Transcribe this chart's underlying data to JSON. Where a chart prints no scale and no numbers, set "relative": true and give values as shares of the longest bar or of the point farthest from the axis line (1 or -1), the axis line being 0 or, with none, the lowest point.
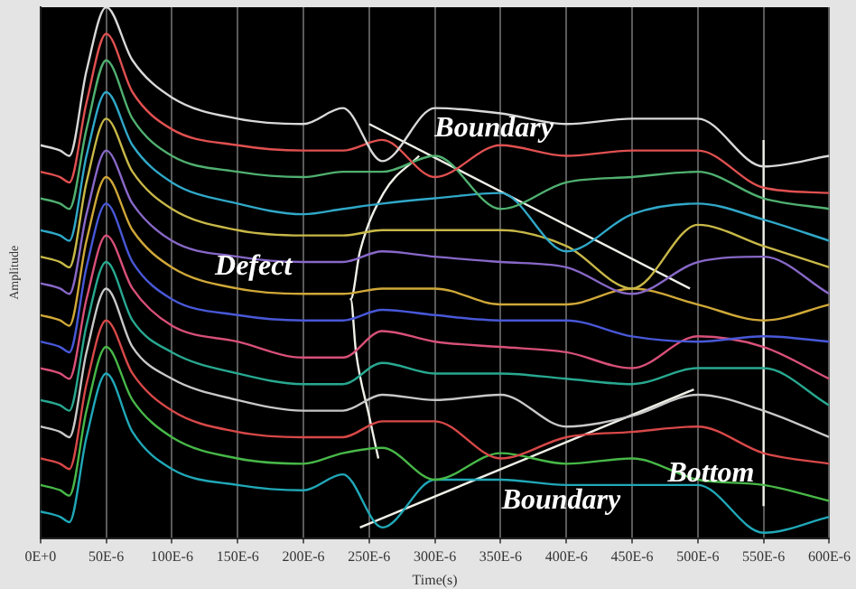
{
  "chart_data": {
    "type": "line",
    "relative": true,
    "xlabel": "Time(s)",
    "ylabel": "Amplitude",
    "grid": "x",
    "legend": false,
    "xlim": [
      0,
      0.0006
    ],
    "xticks": [
      {
        "value": 0,
        "label": "0E+0"
      },
      {
        "value": 5e-05,
        "label": "50E-6"
      },
      {
        "value": 0.0001,
        "label": "100E-6"
      },
      {
        "value": 0.00015,
        "label": "150E-6"
      },
      {
        "value": 0.0002,
        "label": "200E-6"
      },
      {
        "value": 0.00025,
        "label": "250E-6"
      },
      {
        "value": 0.0003,
        "label": "300E-6"
      },
      {
        "value": 0.00035,
        "label": "350E-6"
      },
      {
        "value": 0.0004,
        "label": "400E-6"
      },
      {
        "value": 0.00045,
        "label": "450E-6"
      },
      {
        "value": 0.0005,
        "label": "500E-6"
      },
      {
        "value": 0.00055,
        "label": "550E-6"
      },
      {
        "value": 0.0006,
        "label": "600E-6"
      }
    ],
    "x": [
      0,
      1.5e-05,
      2.2e-05,
      3.5e-05,
      5e-05,
      7e-05,
      0.0001,
      0.00015,
      0.0002,
      0.00023,
      0.00026,
      0.0003,
      0.00035,
      0.0004,
      0.00045,
      0.0005,
      0.00055,
      0.0006
    ],
    "series": [
      {
        "color": "#d8d8d8",
        "values": [
          0.74,
          0.73,
          0.72,
          0.88,
          1,
          0.9,
          0.83,
          0.79,
          0.78,
          0.81,
          0.71,
          0.81,
          0.8,
          0.78,
          0.79,
          0.79,
          0.7,
          0.72
        ]
      },
      {
        "color": "#e05050",
        "values": [
          0.69,
          0.68,
          0.67,
          0.82,
          0.95,
          0.84,
          0.77,
          0.74,
          0.73,
          0.73,
          0.75,
          0.68,
          0.74,
          0.72,
          0.73,
          0.73,
          0.66,
          0.65
        ]
      },
      {
        "color": "#50b070",
        "values": [
          0.64,
          0.63,
          0.62,
          0.77,
          0.9,
          0.79,
          0.72,
          0.69,
          0.68,
          0.69,
          0.69,
          0.72,
          0.62,
          0.67,
          0.68,
          0.69,
          0.64,
          0.62
        ]
      },
      {
        "color": "#30a8c8",
        "values": [
          0.58,
          0.57,
          0.56,
          0.72,
          0.84,
          0.74,
          0.67,
          0.63,
          0.61,
          0.62,
          0.63,
          0.64,
          0.65,
          0.54,
          0.61,
          0.63,
          0.6,
          0.56
        ]
      },
      {
        "color": "#c8b848",
        "values": [
          0.53,
          0.52,
          0.51,
          0.67,
          0.79,
          0.69,
          0.62,
          0.58,
          0.57,
          0.57,
          0.58,
          0.58,
          0.58,
          0.55,
          0.47,
          0.59,
          0.55,
          0.51
        ]
      },
      {
        "color": "#8868c8",
        "values": [
          0.48,
          0.47,
          0.46,
          0.61,
          0.73,
          0.63,
          0.56,
          0.53,
          0.52,
          0.52,
          0.54,
          0.53,
          0.52,
          0.51,
          0.46,
          0.52,
          0.53,
          0.46
        ]
      },
      {
        "color": "#d0a838",
        "values": [
          0.42,
          0.41,
          0.4,
          0.56,
          0.68,
          0.58,
          0.51,
          0.47,
          0.46,
          0.46,
          0.47,
          0.47,
          0.44,
          0.44,
          0.47,
          0.44,
          0.41,
          0.44
        ]
      },
      {
        "color": "#4858d8",
        "values": [
          0.37,
          0.36,
          0.35,
          0.51,
          0.63,
          0.52,
          0.45,
          0.42,
          0.41,
          0.41,
          0.43,
          0.42,
          0.41,
          0.41,
          0.38,
          0.37,
          0.38,
          0.37
        ]
      },
      {
        "color": "#d85078",
        "values": [
          0.32,
          0.31,
          0.3,
          0.45,
          0.57,
          0.47,
          0.4,
          0.37,
          0.34,
          0.34,
          0.39,
          0.37,
          0.36,
          0.35,
          0.32,
          0.38,
          0.36,
          0.3
        ]
      },
      {
        "color": "#28a890",
        "values": [
          0.26,
          0.25,
          0.24,
          0.4,
          0.52,
          0.41,
          0.35,
          0.31,
          0.29,
          0.29,
          0.33,
          0.31,
          0.31,
          0.3,
          0.29,
          0.32,
          0.32,
          0.25
        ]
      },
      {
        "color": "#c8c8c8",
        "values": [
          0.21,
          0.2,
          0.19,
          0.35,
          0.47,
          0.36,
          0.3,
          0.26,
          0.24,
          0.24,
          0.27,
          0.26,
          0.27,
          0.21,
          0.23,
          0.27,
          0.24,
          0.19
        ]
      },
      {
        "color": "#d84848",
        "values": [
          0.15,
          0.14,
          0.13,
          0.29,
          0.41,
          0.31,
          0.24,
          0.2,
          0.19,
          0.19,
          0.22,
          0.22,
          0.15,
          0.19,
          0.2,
          0.21,
          0.16,
          0.14
        ]
      },
      {
        "color": "#48b848",
        "values": [
          0.1,
          0.09,
          0.08,
          0.24,
          0.36,
          0.26,
          0.19,
          0.15,
          0.14,
          0.16,
          0.17,
          0.11,
          0.16,
          0.14,
          0.15,
          0.11,
          0.1,
          0.07
        ]
      },
      {
        "color": "#20a8b8",
        "values": [
          0.05,
          0.04,
          0.03,
          0.19,
          0.31,
          0.2,
          0.13,
          0.1,
          0.09,
          0.12,
          0.02,
          0.11,
          0.11,
          0.1,
          0.1,
          0.1,
          0.01,
          0.04
        ]
      },
      {
        "type": "line",
        "color": "#f0f0e8",
        "x": [
          0.00025,
          0.000494
        ],
        "values": [
          0.78,
          0.47
        ]
      },
      {
        "type": "line",
        "color": "#f0f0e8",
        "x": [
          0.000243,
          0.000497
        ],
        "values": [
          0.02,
          0.28
        ]
      },
      {
        "type": "line",
        "color": "#f0f0e8",
        "x": [
          0.000288,
          0.000261,
          0.000243,
          0.000236,
          0.00024,
          0.00025,
          0.000257
        ],
        "values": [
          0.72,
          0.65,
          0.54,
          0.45,
          0.35,
          0.23,
          0.15
        ]
      },
      {
        "type": "line",
        "color": "#f0f0e8",
        "x": [
          0.00055,
          0.00055
        ],
        "values": [
          0.06,
          0.75
        ]
      }
    ],
    "annotations": [
      "Boundary",
      "Defect",
      "Boundary",
      "Bottom"
    ]
  }
}
